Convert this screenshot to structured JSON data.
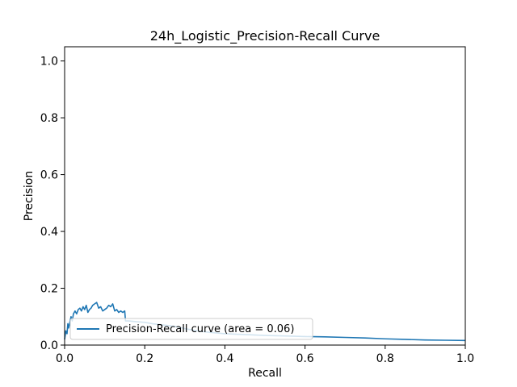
{
  "chart_data": {
    "type": "line",
    "title": "24h_Logistic_Precision-Recall Curve",
    "xlabel": "Recall",
    "ylabel": "Precision",
    "xlim": [
      0.0,
      1.0
    ],
    "ylim": [
      0.0,
      1.05
    ],
    "xticks": [
      "0.0",
      "0.2",
      "0.4",
      "0.6",
      "0.8",
      "1.0"
    ],
    "yticks": [
      "0.0",
      "0.2",
      "0.4",
      "0.6",
      "0.8",
      "1.0"
    ],
    "xtick_values": [
      0.0,
      0.2,
      0.4,
      0.6,
      0.8,
      1.0
    ],
    "ytick_values": [
      0.0,
      0.2,
      0.4,
      0.6,
      0.8,
      1.0
    ],
    "grid": false,
    "legend_position": "lower-left",
    "series": [
      {
        "name": "Precision-Recall curve (area = 0.06)",
        "color": "#1f77b4",
        "x": [
          0.0,
          0.003,
          0.006,
          0.008,
          0.01,
          0.013,
          0.016,
          0.019,
          0.022,
          0.026,
          0.03,
          0.034,
          0.038,
          0.042,
          0.046,
          0.05,
          0.054,
          0.058,
          0.062,
          0.066,
          0.07,
          0.075,
          0.08,
          0.085,
          0.09,
          0.095,
          0.1,
          0.105,
          0.11,
          0.115,
          0.12,
          0.125,
          0.13,
          0.135,
          0.14,
          0.145,
          0.15,
          0.152,
          0.16,
          0.18,
          0.2,
          0.22,
          0.25,
          0.28,
          0.3,
          0.33,
          0.36,
          0.4,
          0.45,
          0.5,
          0.55,
          0.6,
          0.65,
          0.7,
          0.75,
          0.8,
          0.85,
          0.9,
          0.95,
          1.0
        ],
        "y": [
          0.02,
          0.05,
          0.04,
          0.075,
          0.06,
          0.08,
          0.1,
          0.085,
          0.11,
          0.12,
          0.11,
          0.125,
          0.13,
          0.12,
          0.135,
          0.125,
          0.14,
          0.115,
          0.125,
          0.13,
          0.14,
          0.145,
          0.15,
          0.13,
          0.135,
          0.12,
          0.125,
          0.13,
          0.14,
          0.135,
          0.145,
          0.12,
          0.125,
          0.115,
          0.12,
          0.115,
          0.12,
          0.085,
          0.085,
          0.082,
          0.08,
          0.075,
          0.07,
          0.065,
          0.058,
          0.05,
          0.045,
          0.04,
          0.037,
          0.034,
          0.032,
          0.03,
          0.029,
          0.027,
          0.025,
          0.022,
          0.02,
          0.018,
          0.017,
          0.016
        ]
      }
    ]
  }
}
